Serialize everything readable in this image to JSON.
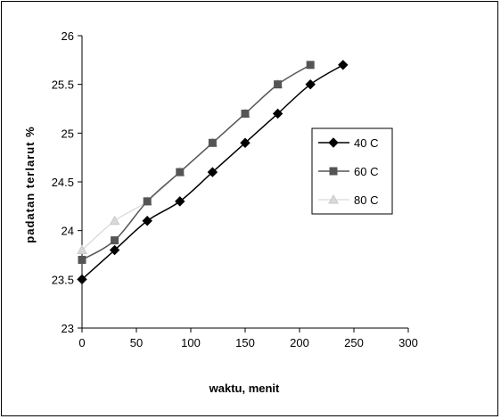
{
  "chart_data": {
    "type": "line",
    "title": "",
    "xlabel": "waktu, menit",
    "ylabel": "padatan terlarut %",
    "xlim": [
      0,
      300
    ],
    "ylim": [
      23,
      26
    ],
    "x_ticks": [
      "0",
      "50",
      "100",
      "150",
      "200",
      "250",
      "300"
    ],
    "y_ticks": [
      "23",
      "23.5",
      "24",
      "24.5",
      "25",
      "25.5",
      "26"
    ],
    "grid": false,
    "legend_position": "right",
    "series": [
      {
        "name": "40 C",
        "marker": "diamond",
        "color": "#000000",
        "x": [
          0,
          30,
          60,
          90,
          120,
          150,
          180,
          210,
          240
        ],
        "y": [
          23.5,
          23.8,
          24.1,
          24.3,
          24.6,
          24.9,
          25.2,
          25.5,
          25.7
        ]
      },
      {
        "name": "60 C",
        "marker": "square",
        "color": "#555555",
        "x": [
          0,
          30,
          60,
          90,
          120,
          150,
          180,
          210
        ],
        "y": [
          23.7,
          23.9,
          24.3,
          24.6,
          24.9,
          25.2,
          25.5,
          25.7
        ]
      },
      {
        "name": "80 C",
        "marker": "triangle",
        "color": "#d9d9d9",
        "x": [
          0,
          30,
          60,
          90,
          120,
          150,
          180
        ],
        "y": [
          23.8,
          24.1,
          24.3,
          24.6,
          24.9,
          25.2,
          25.5
        ]
      }
    ]
  }
}
